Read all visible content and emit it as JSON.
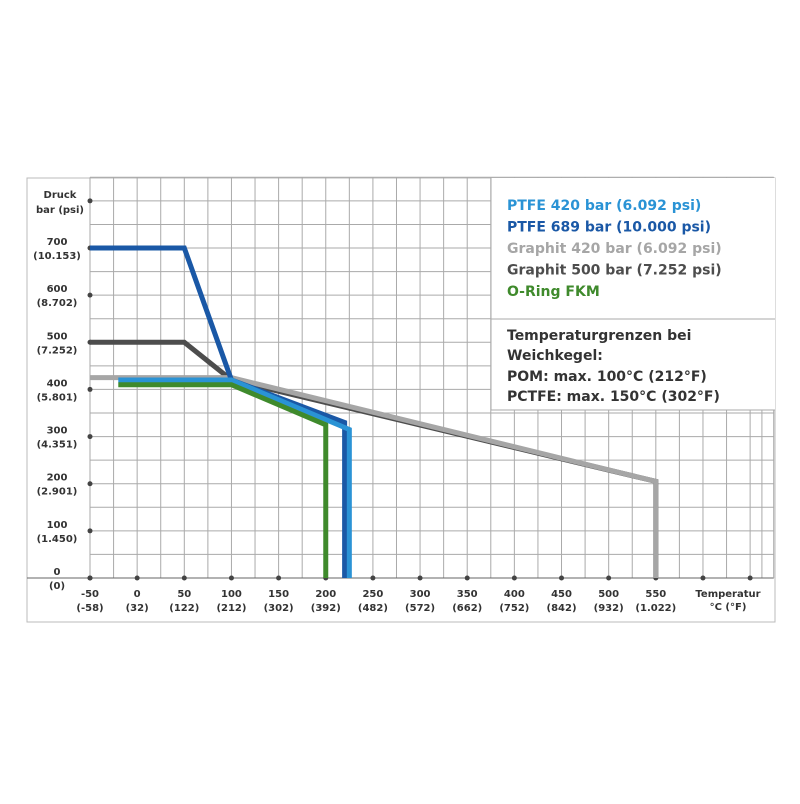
{
  "chart_data": {
    "type": "line",
    "y_label": "Druck",
    "y_unit_label": "bar (psi)",
    "x_label": "Temperatur",
    "x_unit_label": "°C (°F)",
    "xlim": [
      -50,
      675
    ],
    "ylim": [
      0,
      850
    ],
    "xticks": [
      -50,
      0,
      50,
      100,
      150,
      200,
      250,
      300,
      350,
      400,
      450,
      500,
      550,
      {
        "value": 600,
        "label": null
      },
      {
        "value": 650,
        "label": null
      }
    ],
    "xtick_f_labels": [
      "(-58)",
      "(32)",
      "(122)",
      "(212)",
      "(302)",
      "(392)",
      "(482)",
      "(572)",
      "(662)",
      "(752)",
      "(842)",
      "(932)",
      "(1.022)",
      null,
      null
    ],
    "yticks": [
      0,
      100,
      200,
      300,
      400,
      500,
      600,
      700,
      {
        "value": 800,
        "label": null
      }
    ],
    "ytick_psi_labels": [
      "(0)",
      "(1.450)",
      "(2.901)",
      "(4.351)",
      "(5.801)",
      "(7.252)",
      "(8.702)",
      "(10.153)",
      null
    ],
    "grid": true,
    "minor_grid": true,
    "series": [
      {
        "name": "PTFE 420 bar (6.092 psi)",
        "color": "#2a93d5",
        "x": [
          -20,
          100,
          225,
          225
        ],
        "values": [
          420,
          420,
          315,
          0
        ]
      },
      {
        "name": "PTFE 689 bar (10.000 psi)",
        "color": "#1a58a6",
        "x": [
          -50,
          50,
          100,
          220,
          220
        ],
        "values": [
          700,
          700,
          420,
          330,
          0
        ]
      },
      {
        "name": "Graphit 420 bar (6.092 psi)",
        "color": "#a6a6a6",
        "x": [
          -50,
          100,
          550,
          550
        ],
        "values": [
          425,
          425,
          205,
          0
        ]
      },
      {
        "name": "Graphit 500 bar (7.252 psi)",
        "color": "#4d4d4d",
        "x": [
          -50,
          50,
          100,
          550,
          550
        ],
        "values": [
          500,
          500,
          420,
          205,
          0
        ]
      },
      {
        "name": "O-Ring FKM",
        "color": "#3f8a2c",
        "x": [
          -20,
          100,
          200,
          200
        ],
        "values": [
          410,
          410,
          325,
          0
        ]
      }
    ],
    "annotation": [
      "Temperaturgrenzen bei",
      "Weichkegel:",
      "POM:     max. 100°C (212°F)",
      "PCTFE: max. 150°C (302°F)"
    ]
  }
}
